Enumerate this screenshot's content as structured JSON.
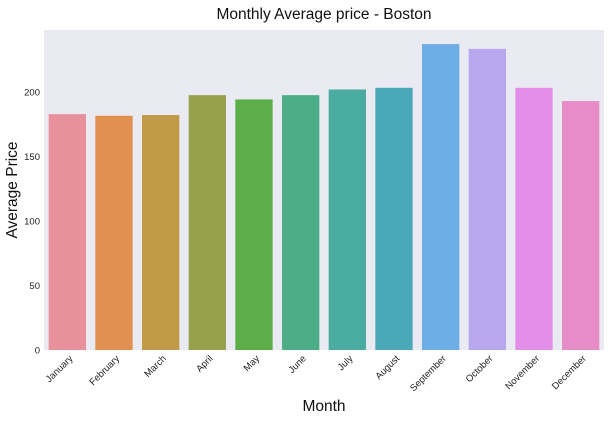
{
  "chart_data": {
    "type": "bar",
    "title": "Monthly Average price - Boston",
    "xlabel": "Month",
    "ylabel": "Average Price",
    "categories": [
      "January",
      "February",
      "March",
      "April",
      "May",
      "June",
      "July",
      "August",
      "September",
      "October",
      "November",
      "December"
    ],
    "values": [
      182.8,
      181.5,
      182.1,
      197.5,
      194.2,
      197.5,
      201.9,
      203.2,
      237.1,
      233.4,
      203.2,
      192.9
    ],
    "colors": [
      "#E8909C",
      "#E1904F",
      "#C09A47",
      "#97A04B",
      "#5CAE4A",
      "#4BAE86",
      "#4AACA0",
      "#4AA8B8",
      "#6EAEE6",
      "#B9A7EE",
      "#E38EE9",
      "#E68CC6"
    ],
    "yticks": [
      0,
      50,
      100,
      150,
      200
    ],
    "ylim": [
      0,
      248
    ],
    "grid": false,
    "legend": "none",
    "plot_background": "#EAEAF2"
  }
}
